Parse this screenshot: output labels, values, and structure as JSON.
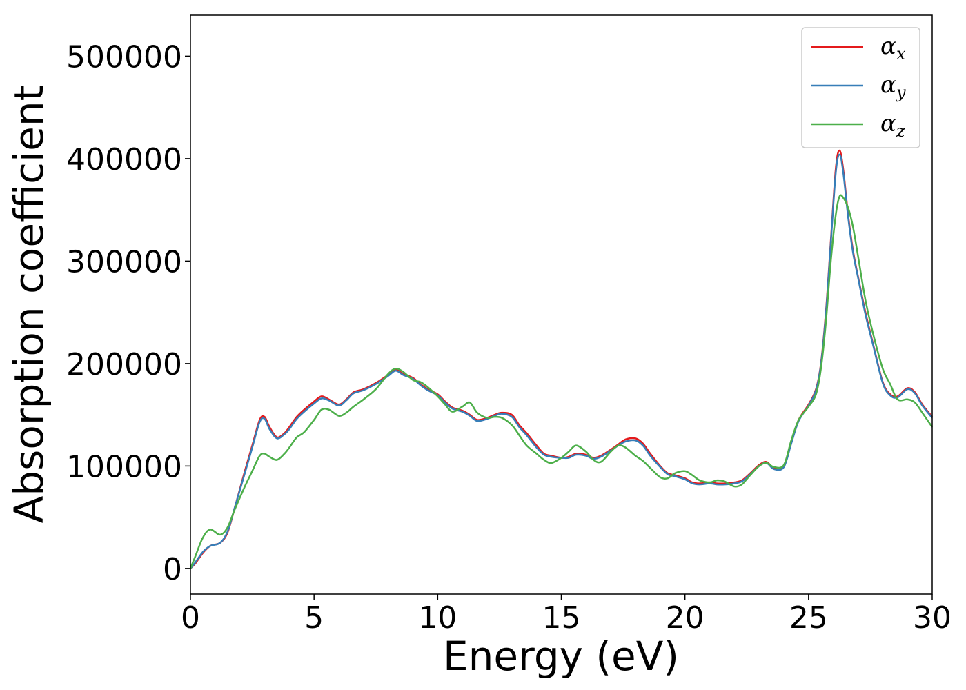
{
  "chart_data": {
    "type": "line",
    "title": "",
    "xlabel": "Energy (eV)",
    "ylabel": "Absorption coefficient",
    "xlim": [
      0,
      30
    ],
    "ylim": [
      -25000,
      540000
    ],
    "x_ticks": [
      0,
      5,
      10,
      15,
      20,
      25,
      30
    ],
    "x_tick_labels": [
      "0",
      "5",
      "10",
      "15",
      "20",
      "25",
      "30"
    ],
    "y_ticks": [
      0,
      100000,
      200000,
      300000,
      400000,
      500000
    ],
    "y_tick_labels": [
      "0",
      "100000",
      "200000",
      "300000",
      "400000",
      "500000"
    ],
    "grid": false,
    "legend": {
      "position": "top-right",
      "entries": [
        {
          "symbol": "α",
          "sub": "x",
          "color": "#e41a1c"
        },
        {
          "symbol": "α",
          "sub": "y",
          "color": "#377eb8"
        },
        {
          "symbol": "α",
          "sub": "z",
          "color": "#4daf4a"
        }
      ]
    },
    "series": [
      {
        "color": "#e41a1c",
        "x": [
          0,
          0.2,
          0.5,
          0.8,
          1.2,
          1.5,
          1.8,
          2.2,
          2.5,
          2.8,
          3.0,
          3.2,
          3.5,
          3.8,
          4.0,
          4.3,
          4.6,
          5.0,
          5.3,
          5.6,
          6.0,
          6.3,
          6.6,
          7.0,
          7.5,
          8.0,
          8.3,
          8.6,
          9.0,
          9.3,
          9.6,
          10.0,
          10.3,
          10.6,
          11.0,
          11.3,
          11.6,
          12.0,
          12.3,
          12.6,
          13.0,
          13.3,
          13.6,
          14.0,
          14.3,
          14.6,
          15.0,
          15.3,
          15.6,
          16.0,
          16.3,
          16.6,
          17.0,
          17.3,
          17.6,
          18.0,
          18.3,
          18.6,
          19.0,
          19.3,
          19.6,
          20.0,
          20.3,
          20.6,
          21.0,
          21.3,
          21.6,
          22.0,
          22.3,
          22.6,
          23.0,
          23.3,
          23.6,
          24.0,
          24.3,
          24.6,
          25.0,
          25.3,
          25.5,
          25.7,
          25.9,
          26.1,
          26.25,
          26.4,
          26.6,
          26.8,
          27.0,
          27.3,
          27.6,
          28.0,
          28.3,
          28.6,
          29.0,
          29.3,
          29.6,
          30.0
        ],
        "y": [
          0,
          5000,
          15000,
          22000,
          25000,
          35000,
          60000,
          95000,
          120000,
          145000,
          148000,
          138000,
          128000,
          132000,
          138000,
          148000,
          155000,
          163000,
          168000,
          165000,
          160000,
          165000,
          172000,
          175000,
          181000,
          189000,
          194000,
          190000,
          186000,
          180000,
          175000,
          170000,
          163000,
          157000,
          154000,
          150000,
          145000,
          147000,
          150000,
          152000,
          150000,
          140000,
          132000,
          120000,
          112000,
          110000,
          108000,
          109000,
          112000,
          111000,
          108000,
          110000,
          116000,
          121000,
          126000,
          127000,
          122000,
          112000,
          100000,
          93000,
          91000,
          88000,
          84000,
          83000,
          84000,
          83000,
          83000,
          84000,
          86000,
          92000,
          101000,
          104000,
          98000,
          100000,
          123000,
          145000,
          160000,
          175000,
          200000,
          250000,
          320000,
          390000,
          408000,
          390000,
          345000,
          310000,
          285000,
          250000,
          220000,
          182000,
          170000,
          168000,
          176000,
          172000,
          160000,
          148000
        ]
      },
      {
        "color": "#377eb8",
        "x": [
          0,
          0.2,
          0.5,
          0.8,
          1.2,
          1.5,
          1.8,
          2.2,
          2.5,
          2.8,
          3.0,
          3.2,
          3.5,
          3.8,
          4.0,
          4.3,
          4.6,
          5.0,
          5.3,
          5.6,
          6.0,
          6.3,
          6.6,
          7.0,
          7.5,
          8.0,
          8.3,
          8.6,
          9.0,
          9.3,
          9.6,
          10.0,
          10.3,
          10.6,
          11.0,
          11.3,
          11.6,
          12.0,
          12.3,
          12.6,
          13.0,
          13.3,
          13.6,
          14.0,
          14.3,
          14.6,
          15.0,
          15.3,
          15.6,
          16.0,
          16.3,
          16.6,
          17.0,
          17.3,
          17.6,
          18.0,
          18.3,
          18.6,
          19.0,
          19.3,
          19.6,
          20.0,
          20.3,
          20.6,
          21.0,
          21.3,
          21.6,
          22.0,
          22.3,
          22.6,
          23.0,
          23.3,
          23.6,
          24.0,
          24.3,
          24.6,
          25.0,
          25.3,
          25.5,
          25.7,
          25.9,
          26.1,
          26.25,
          26.4,
          26.6,
          26.8,
          27.0,
          27.3,
          27.6,
          28.0,
          28.3,
          28.6,
          29.0,
          29.3,
          29.6,
          30.0
        ],
        "y": [
          0,
          6000,
          16000,
          22000,
          25000,
          36000,
          60000,
          93000,
          118000,
          143000,
          146000,
          136000,
          127000,
          131000,
          136000,
          146000,
          153000,
          161000,
          166000,
          164000,
          159000,
          164000,
          171000,
          174000,
          180000,
          188000,
          193000,
          189000,
          185000,
          179000,
          174000,
          169000,
          162000,
          156000,
          153000,
          149000,
          144000,
          146000,
          149000,
          151000,
          148000,
          138000,
          130000,
          118000,
          111000,
          109000,
          108000,
          108000,
          111000,
          110000,
          107000,
          109000,
          115000,
          120000,
          124000,
          125000,
          120000,
          110000,
          99000,
          92000,
          90000,
          87000,
          83000,
          82000,
          83000,
          82000,
          82000,
          83000,
          85000,
          91000,
          100000,
          103000,
          97000,
          99000,
          122000,
          144000,
          159000,
          174000,
          199000,
          248000,
          318000,
          386000,
          404000,
          387000,
          343000,
          308000,
          284000,
          248000,
          219000,
          181000,
          169000,
          167000,
          175000,
          171000,
          159000,
          147000
        ]
      },
      {
        "color": "#4daf4a",
        "x": [
          0,
          0.2,
          0.5,
          0.8,
          1.2,
          1.5,
          1.8,
          2.2,
          2.5,
          2.8,
          3.0,
          3.2,
          3.5,
          3.8,
          4.0,
          4.3,
          4.6,
          5.0,
          5.3,
          5.6,
          6.0,
          6.3,
          6.6,
          7.0,
          7.5,
          8.0,
          8.3,
          8.6,
          9.0,
          9.3,
          9.6,
          10.0,
          10.3,
          10.6,
          11.0,
          11.3,
          11.6,
          12.0,
          12.3,
          12.6,
          13.0,
          13.3,
          13.6,
          14.0,
          14.3,
          14.6,
          15.0,
          15.3,
          15.6,
          16.0,
          16.3,
          16.6,
          17.0,
          17.3,
          17.6,
          18.0,
          18.3,
          18.6,
          19.0,
          19.3,
          19.6,
          20.0,
          20.3,
          20.6,
          21.0,
          21.3,
          21.6,
          22.0,
          22.3,
          22.6,
          23.0,
          23.3,
          23.6,
          24.0,
          24.3,
          24.6,
          25.0,
          25.3,
          25.5,
          25.7,
          25.9,
          26.1,
          26.25,
          26.4,
          26.6,
          26.8,
          27.0,
          27.3,
          27.6,
          28.0,
          28.3,
          28.6,
          29.0,
          29.3,
          29.6,
          30.0
        ],
        "y": [
          0,
          12000,
          30000,
          38000,
          33000,
          40000,
          58000,
          80000,
          95000,
          110000,
          112000,
          109000,
          106000,
          112000,
          118000,
          128000,
          133000,
          145000,
          155000,
          155000,
          149000,
          152000,
          158000,
          165000,
          175000,
          190000,
          195000,
          192000,
          184000,
          182000,
          177000,
          168000,
          160000,
          153000,
          158000,
          162000,
          152000,
          147000,
          148000,
          147000,
          140000,
          130000,
          120000,
          112000,
          106000,
          103000,
          108000,
          114000,
          120000,
          114000,
          106000,
          104000,
          114000,
          120000,
          118000,
          110000,
          105000,
          98000,
          89000,
          88000,
          93000,
          95000,
          91000,
          86000,
          84000,
          86000,
          85000,
          80000,
          82000,
          90000,
          100000,
          103000,
          99000,
          101000,
          125000,
          145000,
          158000,
          170000,
          195000,
          240000,
          300000,
          345000,
          363000,
          362000,
          352000,
          333000,
          305000,
          262000,
          230000,
          195000,
          180000,
          165000,
          165000,
          162000,
          152000,
          138000
        ]
      }
    ]
  }
}
